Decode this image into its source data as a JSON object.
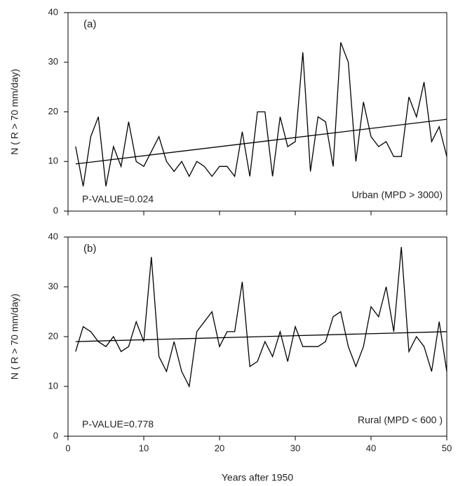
{
  "chart_data": [
    {
      "type": "line",
      "panel_label": "(a)",
      "ylabel": "N ( R > 70 mm/day)",
      "annotations": [
        "P-VALUE=0.024",
        "Urban (MPD > 3000)"
      ],
      "x": [
        1,
        2,
        3,
        4,
        5,
        6,
        7,
        8,
        9,
        10,
        11,
        12,
        13,
        14,
        15,
        16,
        17,
        18,
        19,
        20,
        21,
        22,
        23,
        24,
        25,
        26,
        27,
        28,
        29,
        30,
        31,
        32,
        33,
        34,
        35,
        36,
        37,
        38,
        39,
        40,
        41,
        42,
        43,
        44,
        45,
        46,
        47,
        48,
        49,
        50
      ],
      "series": [
        {
          "color": "#000000",
          "values": [
            13,
            5,
            15,
            19,
            5,
            13,
            9,
            18,
            10,
            9,
            12,
            15,
            10,
            8,
            10,
            7,
            10,
            9,
            7,
            9,
            9,
            7,
            16,
            7,
            20,
            20,
            7,
            19,
            13,
            14,
            32,
            8,
            19,
            18,
            9,
            34,
            30,
            10,
            22,
            15,
            13,
            14,
            11,
            11,
            23,
            19,
            26,
            14,
            17,
            11
          ]
        }
      ],
      "trend": {
        "x": [
          1,
          50
        ],
        "values": [
          9.5,
          18.5
        ]
      },
      "xlim": [
        0,
        50
      ],
      "xticks": [
        0,
        10,
        20,
        30,
        40,
        50
      ],
      "ylim": [
        0,
        40
      ],
      "yticks": [
        0,
        10,
        20,
        30,
        40
      ]
    },
    {
      "type": "line",
      "panel_label": "(b)",
      "ylabel": "N ( R > 70 mm/day)",
      "xlabel": "Years after 1950",
      "annotations": [
        "P-VALUE=0.778",
        "Rural (MPD < 600 )"
      ],
      "x": [
        1,
        2,
        3,
        4,
        5,
        6,
        7,
        8,
        9,
        10,
        11,
        12,
        13,
        14,
        15,
        16,
        17,
        18,
        19,
        20,
        21,
        22,
        23,
        24,
        25,
        26,
        27,
        28,
        29,
        30,
        31,
        32,
        33,
        34,
        35,
        36,
        37,
        38,
        39,
        40,
        41,
        42,
        43,
        44,
        45,
        46,
        47,
        48,
        49,
        50
      ],
      "series": [
        {
          "color": "#000000",
          "values": [
            17,
            22,
            21,
            19,
            18,
            20,
            17,
            18,
            23,
            19,
            36,
            16,
            13,
            19,
            13,
            10,
            21,
            23,
            25,
            18,
            21,
            21,
            31,
            14,
            15,
            19,
            16,
            21,
            15,
            22,
            18,
            18,
            18,
            19,
            24,
            25,
            18,
            14,
            18,
            26,
            24,
            30,
            21,
            38,
            17,
            20,
            18,
            13,
            23,
            13
          ]
        }
      ],
      "trend": {
        "x": [
          1,
          50
        ],
        "values": [
          19,
          21
        ]
      },
      "xlim": [
        0,
        50
      ],
      "xticks": [
        0,
        10,
        20,
        30,
        40,
        50
      ],
      "ylim": [
        0,
        40
      ],
      "yticks": [
        0,
        10,
        20,
        30,
        40
      ]
    }
  ]
}
